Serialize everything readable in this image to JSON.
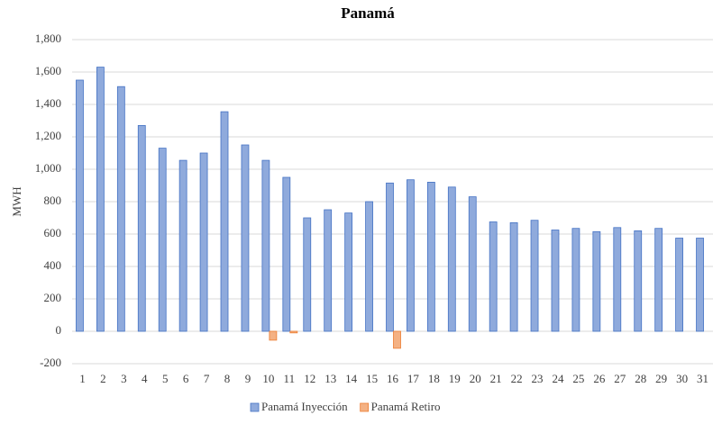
{
  "chart_data": {
    "type": "bar",
    "title": "Panamá",
    "y_label": "MWH",
    "categories": [
      "1",
      "2",
      "3",
      "4",
      "5",
      "6",
      "7",
      "8",
      "9",
      "10",
      "11",
      "12",
      "13",
      "14",
      "15",
      "16",
      "17",
      "18",
      "19",
      "20",
      "21",
      "22",
      "23",
      "24",
      "25",
      "26",
      "27",
      "28",
      "29",
      "30",
      "31"
    ],
    "series": [
      {
        "name": "Panamá Inyección",
        "color": "#8faadc",
        "edge": "#4472c4",
        "values": [
          1550,
          1630,
          1510,
          1270,
          1130,
          1055,
          1100,
          1355,
          1150,
          1055,
          950,
          700,
          750,
          730,
          800,
          915,
          935,
          920,
          890,
          830,
          675,
          670,
          685,
          625,
          635,
          615,
          640,
          620,
          635,
          575,
          575
        ]
      },
      {
        "name": "Panamá Retiro",
        "color": "#f4b183",
        "edge": "#ed7d31",
        "values": [
          0,
          0,
          0,
          0,
          0,
          0,
          0,
          0,
          0,
          -55,
          -10,
          0,
          0,
          0,
          0,
          -105,
          0,
          0,
          0,
          0,
          0,
          0,
          0,
          0,
          0,
          0,
          0,
          0,
          0,
          0,
          0
        ]
      }
    ],
    "ylim": [
      -200,
      1800
    ],
    "yticks": [
      -200,
      0,
      200,
      400,
      600,
      800,
      {
        "value": 1000,
        "label": "1,000"
      },
      {
        "value": 1200,
        "label": "1,200"
      },
      {
        "value": 1400,
        "label": "1,400"
      },
      {
        "value": 1600,
        "label": "1,600"
      },
      {
        "value": 1800,
        "label": "1,800"
      }
    ],
    "grid": true,
    "legend": "bottom"
  }
}
